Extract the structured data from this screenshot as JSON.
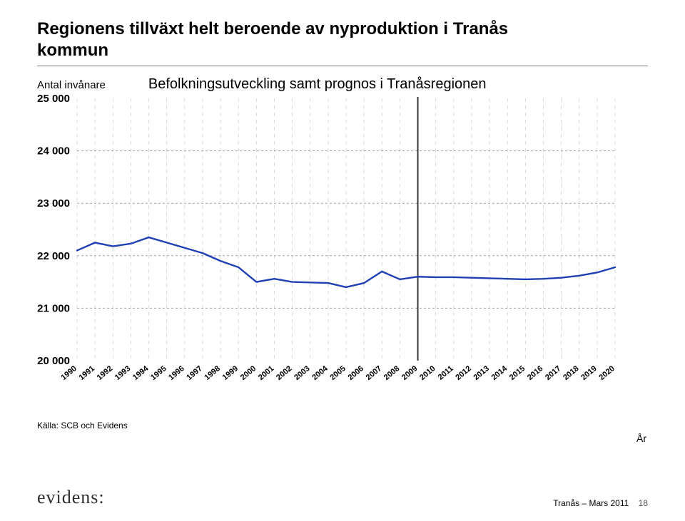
{
  "title_line1": "Regionens tillväxt helt beroende av nyproduktion i Tranås",
  "title_line2": "kommun",
  "ylabel": "Antal invånare",
  "subtitle": "Befolkningsutveckling samt prognos i Tranåsregionen",
  "source": "Källa: SCB och Evidens",
  "xlabel": "År",
  "logo": "evidens:",
  "footer_text": "Tranås – Mars 2011",
  "page_number": "18",
  "chart": {
    "type": "line",
    "ylim": [
      20000,
      25000
    ],
    "ytick_step": 1000,
    "ytick_labels": [
      "25 000",
      "24 000",
      "23 000",
      "22 000",
      "21 000",
      "20 000"
    ],
    "years": [
      1990,
      1991,
      1992,
      1993,
      1994,
      1995,
      1996,
      1997,
      1998,
      1999,
      2000,
      2001,
      2002,
      2003,
      2004,
      2005,
      2006,
      2007,
      2008,
      2009,
      2010,
      2011,
      2012,
      2013,
      2014,
      2015,
      2016,
      2017,
      2018,
      2019,
      2020
    ],
    "values": [
      22100,
      22250,
      22180,
      22230,
      22350,
      22250,
      22150,
      22050,
      21900,
      21780,
      21500,
      21560,
      21500,
      21490,
      21480,
      21400,
      21480,
      21700,
      21550,
      21600,
      21590,
      21590,
      21580,
      21570,
      21560,
      21550,
      21560,
      21580,
      21620,
      21680,
      21780
    ],
    "series_color": "#1f3fb5",
    "series_width": 2.4,
    "hgrid_color": "#9aa3a6",
    "hgrid_dash": "3 3",
    "vgrid_color": "#9aa3a6",
    "vgrid_dash": "5 5",
    "marker_x": 2009,
    "marker_color": "#3a3a3a",
    "marker_width": 2,
    "background_color": "#ffffff",
    "xlabel_fontsize": 11,
    "ylabel_fontsize": 15
  }
}
